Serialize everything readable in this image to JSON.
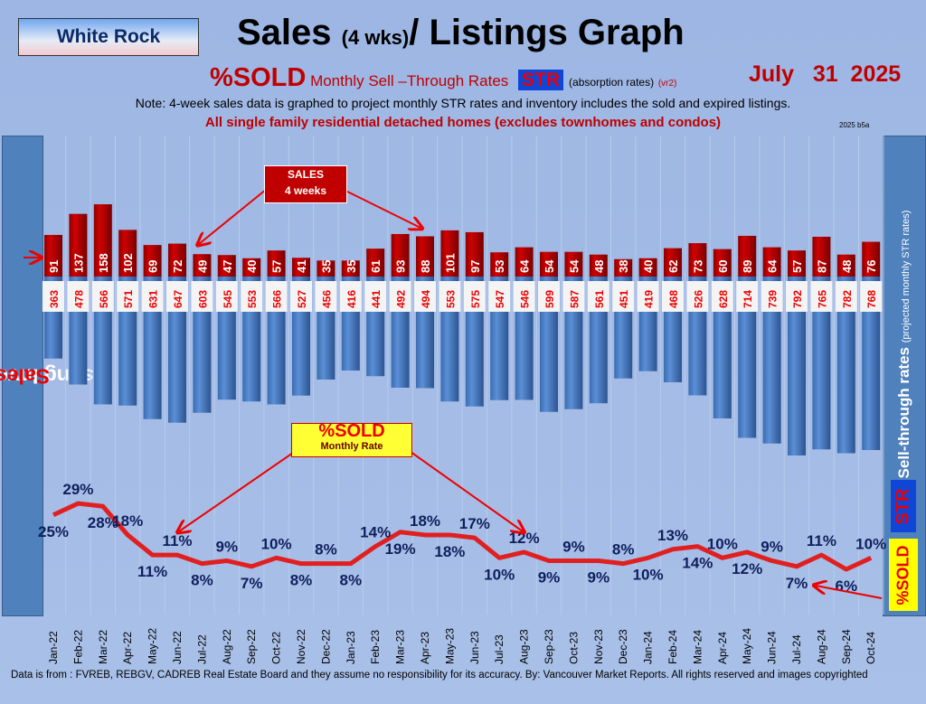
{
  "header": {
    "location": "White Rock",
    "title_main": "Sales ",
    "title_small": "(4 wks)",
    "title_end": "/ Listings Graph",
    "sub_sold": "%SOLD",
    "sub_rest": " Monthly Sell –Through Rates",
    "sub_str": "STR",
    "sub_abs": "(absorption rates)",
    "sub_vr": "(vr2)",
    "date": "July   31  2025",
    "note": "Note: 4-week sales data is graphed to project monthly STR rates and inventory includes the sold and expired listings.",
    "note2": "All single family residential detached homes (excludes townhomes and condos)",
    "version": "2025 b5a"
  },
  "left_axis": {
    "label_a": "Listing Inventory / ",
    "label_b": "Sales"
  },
  "right_axis": {
    "label": "Sell-through rates",
    "sub": "(projected monthly STR rates)",
    "str": "STR",
    "sold": "%SOLD"
  },
  "callouts": {
    "sales_l1": "SALES",
    "sales_l2": "4 weeks",
    "sold_l1": "%SOLD",
    "sold_l2": "Monthly Rate"
  },
  "footer": "Data is from : FVREB, REBGV, CADREB Real Estate Board and they assume no responsibility for its accuracy. By: Vancouver Market Reports. All rights reserved and  images copyrighted",
  "colors": {
    "sales": "#c00000",
    "listings": "#4f81bd",
    "line": "#e02020"
  },
  "chart_data": {
    "type": "bar",
    "title": "Sales (4 wks)/ Listings Graph",
    "categories": [
      "Jan-22",
      "Feb-22",
      "Mar-22",
      "Apr-22",
      "May-22",
      "Jun-22",
      "Jul-22",
      "Aug-22",
      "Sep-22",
      "Oct-22",
      "Nov-22",
      "Dec-22",
      "Jan-23",
      "Feb-23",
      "Mar-23",
      "Apr-23",
      "May-23",
      "Jun-23",
      "Jul-23",
      "Aug-23",
      "Sep-23",
      "Oct-23",
      "Nov-23",
      "Dec-23",
      "Jan-24",
      "Feb-24",
      "Mar-24",
      "Apr-24",
      "May-24",
      "Jun-24",
      "Jul-24",
      "Aug-24",
      "Sep-24",
      "Oct-24"
    ],
    "series": [
      {
        "name": "Sales (4 weeks)",
        "values": [
          91,
          137,
          158,
          102,
          69,
          72,
          49,
          47,
          40,
          57,
          41,
          35,
          35,
          61,
          93,
          88,
          101,
          97,
          53,
          64,
          54,
          54,
          48,
          38,
          40,
          62,
          73,
          60,
          89,
          64,
          57,
          87,
          48,
          76
        ]
      },
      {
        "name": "Listing Inventory",
        "values": [
          363,
          478,
          566,
          571,
          631,
          647,
          603,
          545,
          553,
          566,
          527,
          456,
          416,
          441,
          492,
          494,
          553,
          575,
          547,
          546,
          599,
          587,
          561,
          451,
          419,
          468,
          526,
          628,
          714,
          739,
          792,
          765,
          782,
          768
        ]
      },
      {
        "name": "%SOLD Monthly Rate",
        "type": "line",
        "values": [
          25,
          29,
          28,
          18,
          11,
          11,
          8,
          9,
          7,
          10,
          8,
          8,
          8,
          14,
          19,
          18,
          18,
          17,
          10,
          12,
          9,
          9,
          9,
          8,
          10,
          13,
          14,
          10,
          12,
          9,
          7,
          11,
          6,
          10
        ]
      }
    ]
  }
}
